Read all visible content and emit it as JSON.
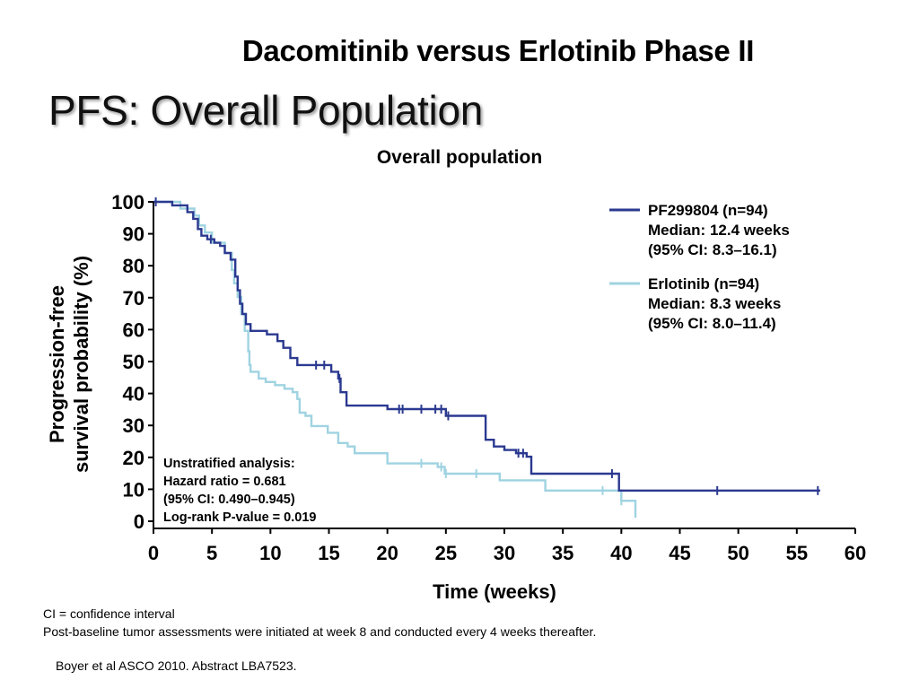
{
  "slide": {
    "title": "Dacomitinib versus Erlotinib Phase II",
    "subtitle": "PFS: Overall Population"
  },
  "footnotes": [
    "CI = confidence interval",
    "Post-baseline tumor assessments were initiated at week 8 and conducted every 4 weeks thereafter."
  ],
  "reference": "Boyer et al ASCO 2010. Abstract LBA7523.",
  "chart_data": {
    "type": "line",
    "subtype": "kaplan-meier step",
    "title": "Overall population",
    "xlabel": "Time (weeks)",
    "ylabel_lines": [
      "Progression-free",
      "survival probability (%)"
    ],
    "xlim": [
      0,
      60
    ],
    "ylim": [
      0,
      100
    ],
    "xticks": [
      0,
      5,
      10,
      15,
      20,
      25,
      30,
      35,
      40,
      45,
      50,
      55,
      60
    ],
    "yticks": [
      0,
      10,
      20,
      30,
      40,
      50,
      60,
      70,
      80,
      90,
      100
    ],
    "grid": false,
    "legend_position": "top-right",
    "series": [
      {
        "name": "PF299804 (n=94)",
        "legend_lines": [
          "PF299804 (n=94)",
          "Median: 12.4 weeks",
          "(95% CI: 8.3–16.1)"
        ],
        "color": "#2b3990",
        "steps": [
          [
            0,
            100
          ],
          [
            1.6,
            100
          ],
          [
            1.6,
            98.9
          ],
          [
            2.9,
            98.9
          ],
          [
            2.9,
            96.8
          ],
          [
            3.4,
            96.8
          ],
          [
            3.4,
            94.7
          ],
          [
            3.8,
            94.7
          ],
          [
            3.8,
            91.5
          ],
          [
            4.1,
            91.5
          ],
          [
            4.1,
            89.4
          ],
          [
            4.6,
            89.4
          ],
          [
            4.6,
            88.3
          ],
          [
            5.2,
            88.3
          ],
          [
            5.2,
            87.2
          ],
          [
            5.7,
            87.2
          ],
          [
            5.7,
            86.2
          ],
          [
            6.1,
            86.2
          ],
          [
            6.1,
            84.0
          ],
          [
            6.6,
            84.0
          ],
          [
            6.6,
            81.9
          ],
          [
            7.0,
            81.9
          ],
          [
            7.0,
            76.6
          ],
          [
            7.2,
            76.6
          ],
          [
            7.2,
            72.3
          ],
          [
            7.4,
            72.3
          ],
          [
            7.4,
            68.1
          ],
          [
            7.6,
            68.1
          ],
          [
            7.6,
            64.9
          ],
          [
            7.9,
            64.9
          ],
          [
            7.9,
            61.7
          ],
          [
            8.3,
            61.7
          ],
          [
            8.3,
            59.6
          ],
          [
            9.7,
            59.6
          ],
          [
            9.7,
            58.5
          ],
          [
            10.6,
            58.5
          ],
          [
            10.6,
            56.4
          ],
          [
            11.1,
            56.4
          ],
          [
            11.1,
            54.3
          ],
          [
            11.7,
            54.3
          ],
          [
            11.7,
            51.1
          ],
          [
            12.3,
            51.1
          ],
          [
            12.3,
            48.9
          ],
          [
            15.2,
            48.9
          ],
          [
            15.2,
            46.8
          ],
          [
            15.8,
            46.8
          ],
          [
            15.8,
            44.7
          ],
          [
            16.0,
            44.7
          ],
          [
            16.0,
            40.4
          ],
          [
            16.5,
            40.4
          ],
          [
            16.5,
            36.2
          ],
          [
            20.0,
            36.2
          ],
          [
            20.0,
            35.1
          ],
          [
            25.0,
            35.1
          ],
          [
            25.0,
            33.0
          ],
          [
            28.4,
            33.0
          ],
          [
            28.4,
            25.5
          ],
          [
            29.1,
            25.5
          ],
          [
            29.1,
            23.4
          ],
          [
            30.0,
            23.4
          ],
          [
            30.0,
            22.3
          ],
          [
            31.0,
            22.3
          ],
          [
            31.0,
            21.3
          ],
          [
            31.9,
            21.3
          ],
          [
            31.9,
            20.2
          ],
          [
            32.3,
            20.2
          ],
          [
            32.3,
            14.9
          ],
          [
            39.8,
            14.9
          ],
          [
            39.8,
            9.6
          ],
          [
            57.0,
            9.6
          ]
        ],
        "censored": [
          [
            0.2,
            100
          ],
          [
            4.9,
            88.3
          ],
          [
            13.9,
            48.9
          ],
          [
            14.6,
            48.9
          ],
          [
            15.9,
            44.7
          ],
          [
            21.0,
            35.1
          ],
          [
            21.3,
            35.1
          ],
          [
            22.9,
            35.1
          ],
          [
            24.1,
            35.1
          ],
          [
            24.6,
            35.1
          ],
          [
            25.2,
            33.0
          ],
          [
            31.2,
            21.3
          ],
          [
            31.6,
            21.3
          ],
          [
            39.2,
            14.9
          ],
          [
            48.2,
            9.6
          ],
          [
            56.8,
            9.6
          ]
        ]
      },
      {
        "name": "Erlotinib (n=94)",
        "legend_lines": [
          "Erlotinib (n=94)",
          "Median: 8.3 weeks",
          "(95% CI: 8.0–11.4)"
        ],
        "color": "#9fd3e1",
        "steps": [
          [
            0,
            100
          ],
          [
            2.3,
            100
          ],
          [
            2.3,
            97.9
          ],
          [
            3.5,
            97.9
          ],
          [
            3.5,
            95.7
          ],
          [
            3.9,
            95.7
          ],
          [
            3.9,
            92.6
          ],
          [
            4.4,
            92.6
          ],
          [
            4.4,
            90.4
          ],
          [
            5.0,
            90.4
          ],
          [
            5.0,
            87.2
          ],
          [
            6.1,
            87.2
          ],
          [
            6.1,
            84.0
          ],
          [
            6.7,
            84.0
          ],
          [
            6.7,
            78.7
          ],
          [
            6.9,
            78.7
          ],
          [
            6.9,
            74.5
          ],
          [
            7.2,
            74.5
          ],
          [
            7.2,
            70.2
          ],
          [
            7.5,
            70.2
          ],
          [
            7.5,
            64.9
          ],
          [
            7.8,
            64.9
          ],
          [
            7.8,
            59.6
          ],
          [
            8.1,
            59.6
          ],
          [
            8.1,
            53.2
          ],
          [
            8.2,
            53.2
          ],
          [
            8.2,
            48.9
          ],
          [
            8.3,
            48.9
          ],
          [
            8.3,
            46.8
          ],
          [
            9.0,
            46.8
          ],
          [
            9.0,
            44.7
          ],
          [
            9.6,
            44.7
          ],
          [
            9.6,
            43.6
          ],
          [
            10.4,
            43.6
          ],
          [
            10.4,
            42.6
          ],
          [
            11.2,
            42.6
          ],
          [
            11.2,
            41.5
          ],
          [
            11.9,
            41.5
          ],
          [
            11.9,
            40.4
          ],
          [
            12.3,
            40.4
          ],
          [
            12.3,
            38.3
          ],
          [
            12.5,
            38.3
          ],
          [
            12.5,
            34.0
          ],
          [
            13.0,
            34.0
          ],
          [
            13.0,
            33.0
          ],
          [
            13.5,
            33.0
          ],
          [
            13.5,
            29.8
          ],
          [
            14.9,
            29.8
          ],
          [
            14.9,
            27.7
          ],
          [
            15.8,
            27.7
          ],
          [
            15.8,
            24.5
          ],
          [
            16.6,
            24.5
          ],
          [
            16.6,
            23.4
          ],
          [
            17.2,
            23.4
          ],
          [
            17.2,
            21.3
          ],
          [
            20.0,
            21.3
          ],
          [
            20.0,
            18.1
          ],
          [
            24.3,
            18.1
          ],
          [
            24.3,
            17.0
          ],
          [
            24.9,
            17.0
          ],
          [
            24.9,
            14.9
          ],
          [
            29.6,
            14.9
          ],
          [
            29.6,
            12.8
          ],
          [
            33.5,
            12.8
          ],
          [
            33.5,
            9.6
          ],
          [
            40.0,
            9.6
          ],
          [
            40.0,
            6.4
          ],
          [
            41.2,
            6.4
          ],
          [
            41.2,
            1.1
          ]
        ],
        "censored": [
          [
            22.9,
            18.1
          ],
          [
            24.6,
            17.0
          ],
          [
            25.0,
            14.9
          ],
          [
            27.6,
            14.9
          ],
          [
            38.4,
            9.6
          ],
          [
            40.0,
            6.4
          ]
        ]
      }
    ],
    "annotation_lines": [
      "Unstratified analysis:",
      "Hazard ratio = 0.681",
      "(95% CI: 0.490–0.945)",
      "Log-rank P-value = 0.019"
    ]
  }
}
